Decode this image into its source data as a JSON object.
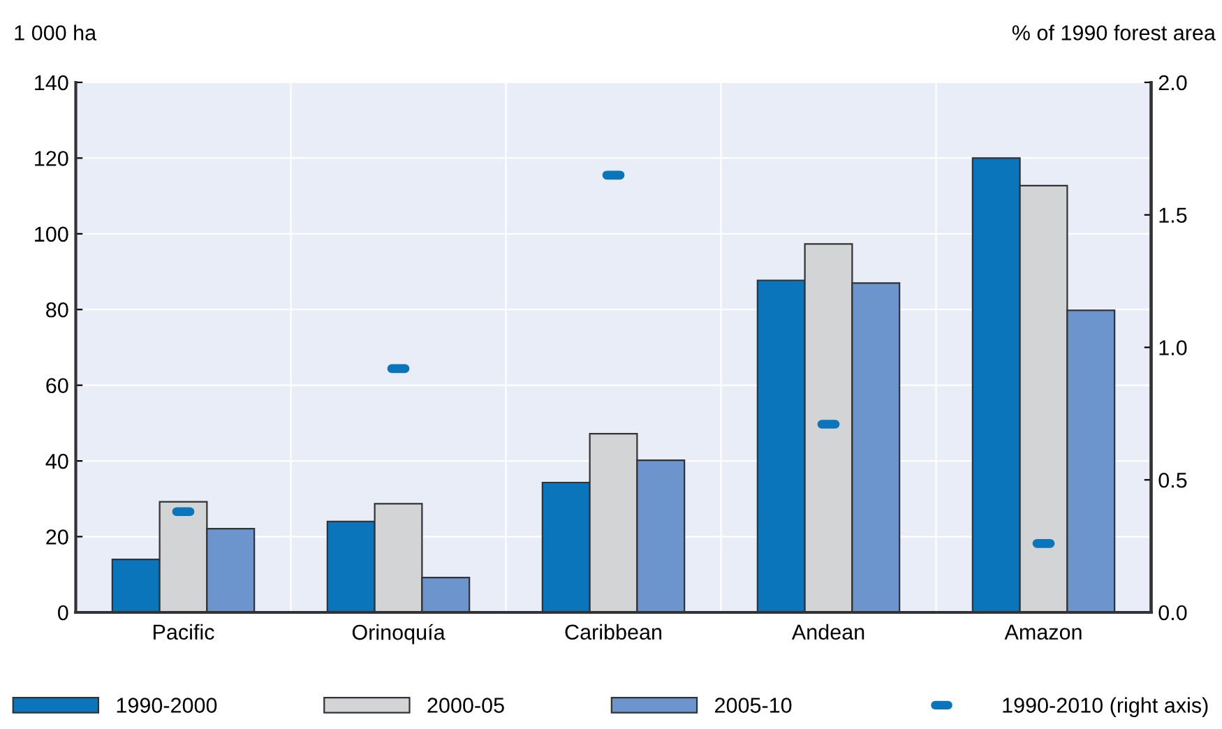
{
  "chart_data": {
    "type": "bar",
    "ylabel": "1 000 ha",
    "y2label": "% of 1990 forest area",
    "categories": [
      "Pacific",
      "Orinoquía",
      "Caribbean",
      "Andean",
      "Amazon"
    ],
    "series": [
      {
        "name": "1990-2000",
        "color": "#0b75bb",
        "values": [
          14.0,
          24.0,
          34.3,
          87.7,
          120.0
        ]
      },
      {
        "name": "2000-05",
        "color": "#d3d4d6",
        "values": [
          29.2,
          28.7,
          47.2,
          97.3,
          112.7
        ]
      },
      {
        "name": "2005-10",
        "color": "#6d95cd",
        "values": [
          22.1,
          9.2,
          40.2,
          87.0,
          79.8
        ]
      },
      {
        "name": "1990-2010 (right axis)",
        "type": "scatter",
        "axis": "y2",
        "color": "#0b75bb",
        "values": [
          0.38,
          0.92,
          1.65,
          0.71,
          0.26
        ]
      }
    ],
    "ylim": [
      0,
      140
    ],
    "yticks": [
      0,
      20,
      40,
      60,
      80,
      100,
      120,
      140
    ],
    "y2lim": [
      0,
      2.0
    ],
    "y2ticks": [
      {
        "value": 0,
        "label": "0.0"
      },
      {
        "value": 0.5,
        "label": "0.5"
      },
      {
        "value": 1.0,
        "label": "1.0"
      },
      {
        "value": 1.5,
        "label": "1.5"
      },
      {
        "value": 2.0,
        "label": "2.0"
      }
    ],
    "grid": "y",
    "legend": "bottom"
  }
}
